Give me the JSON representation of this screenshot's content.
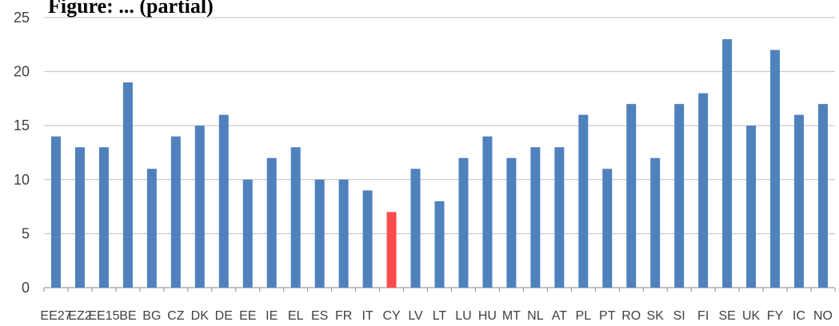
{
  "title": "Figure: ... (partial)",
  "chart_data": {
    "type": "bar",
    "title": "",
    "xlabel": "",
    "ylabel": "",
    "ylim": [
      0,
      25
    ],
    "yticks": [
      0,
      5,
      10,
      15,
      20,
      25
    ],
    "grid": true,
    "legend": "none",
    "bar_color": "#4f81bd",
    "highlight_color": "#ff4b4b",
    "highlight_category": "CY",
    "categories": [
      "EE27",
      "EZ2",
      "EE15",
      "BE",
      "BG",
      "CZ",
      "DK",
      "DE",
      "EE",
      "IE",
      "EL",
      "ES",
      "FR",
      "IT",
      "CY",
      "LV",
      "LT",
      "LU",
      "HU",
      "MT",
      "NL",
      "AT",
      "PL",
      "PT",
      "RO",
      "SK",
      "SI",
      "FI",
      "SE",
      "UK",
      "FY",
      "IC",
      "NO"
    ],
    "values": [
      14,
      13,
      13,
      19,
      11,
      14,
      15,
      16,
      10,
      12,
      13,
      10,
      10,
      9,
      7,
      11,
      8,
      12,
      14,
      12,
      13,
      13,
      16,
      11,
      17,
      12,
      17,
      18,
      23,
      15,
      22,
      16,
      17
    ]
  }
}
